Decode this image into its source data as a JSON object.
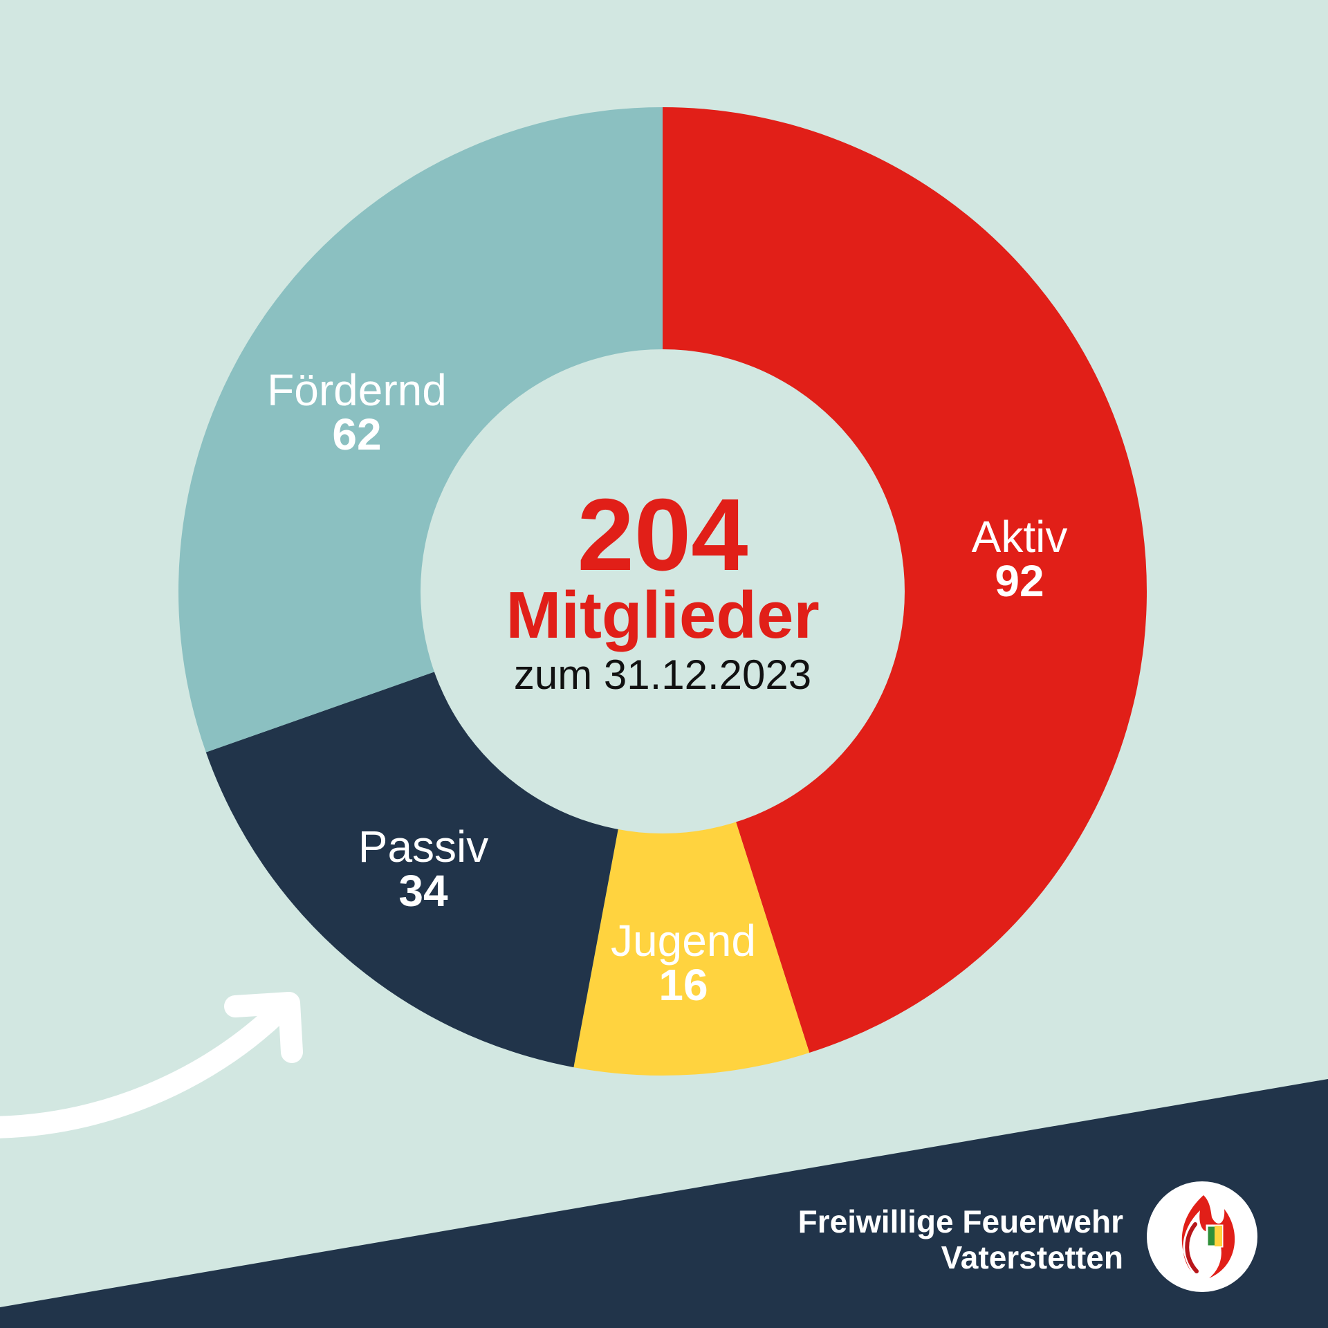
{
  "colors": {
    "background": "#d2e7e1",
    "aktiv": "#e11f18",
    "jugend": "#ffd33f",
    "passiv": "#21344a",
    "foerdernd": "#8bc0c1",
    "total_text": "#e11f18",
    "footer_band": "#21344a",
    "arrow": "#ffffff"
  },
  "chart_data": {
    "type": "pie",
    "variant": "donut",
    "total": 204,
    "center": {
      "total": "204",
      "unit": "Mitglieder",
      "date": "zum 31.12.2023"
    },
    "slices": [
      {
        "label": "Aktiv",
        "value": 92
      },
      {
        "label": "Jugend",
        "value": 16
      },
      {
        "label": "Passiv",
        "value": 34
      },
      {
        "label": "Fördernd",
        "value": 62
      }
    ]
  },
  "footer": {
    "org_line1": "Freiwillige Feuerwehr",
    "org_line2": "Vaterstetten",
    "logo_icon": "flame-logo-icon"
  }
}
